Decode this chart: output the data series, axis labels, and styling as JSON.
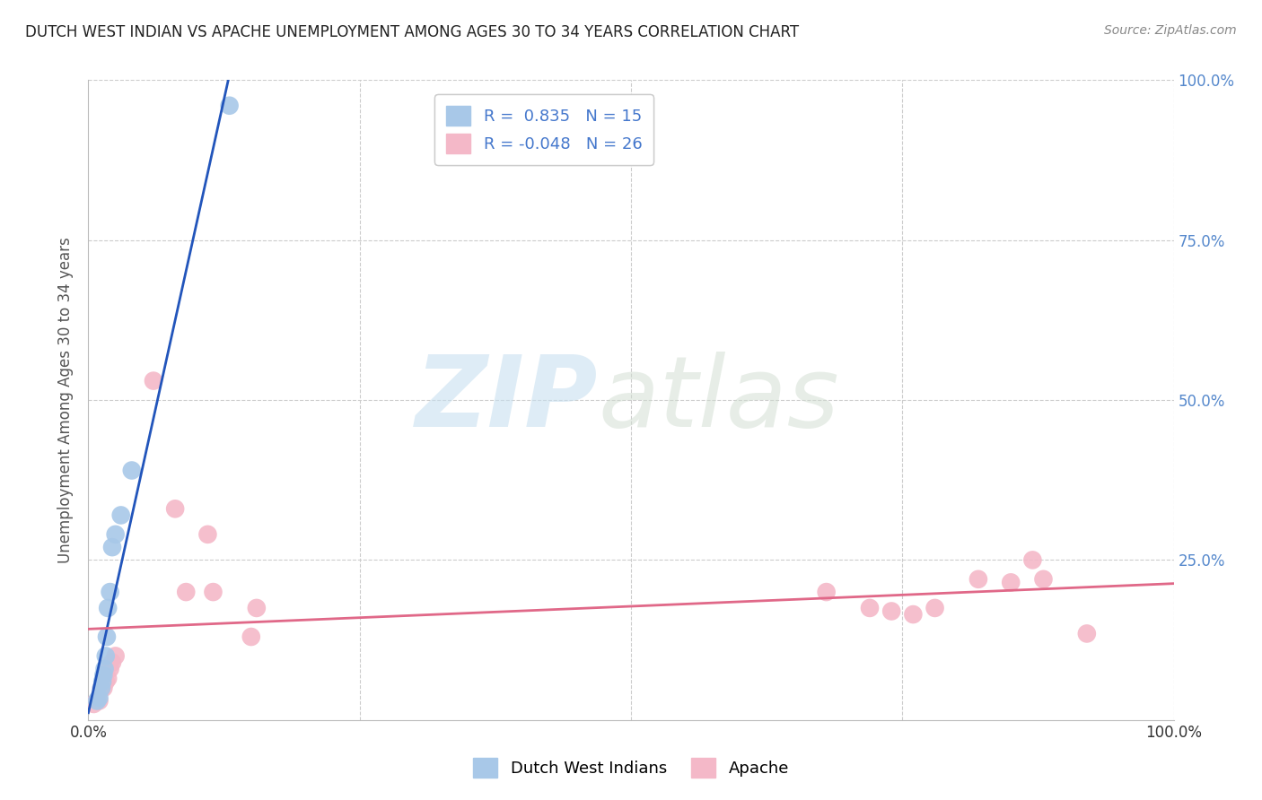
{
  "title": "DUTCH WEST INDIAN VS APACHE UNEMPLOYMENT AMONG AGES 30 TO 34 YEARS CORRELATION CHART",
  "source": "Source: ZipAtlas.com",
  "ylabel": "Unemployment Among Ages 30 to 34 years",
  "xlim": [
    0.0,
    1.0
  ],
  "ylim": [
    0.0,
    1.0
  ],
  "r_blue": 0.835,
  "n_blue": 15,
  "r_pink": -0.048,
  "n_pink": 26,
  "blue_color": "#a8c8e8",
  "pink_color": "#f4b8c8",
  "blue_line_color": "#2255bb",
  "pink_line_color": "#e06888",
  "blue_scatter_x": [
    0.008,
    0.01,
    0.012,
    0.013,
    0.014,
    0.015,
    0.016,
    0.017,
    0.018,
    0.02,
    0.022,
    0.025,
    0.03,
    0.04,
    0.13
  ],
  "blue_scatter_y": [
    0.03,
    0.035,
    0.05,
    0.06,
    0.07,
    0.08,
    0.1,
    0.13,
    0.175,
    0.2,
    0.27,
    0.29,
    0.32,
    0.39,
    0.96
  ],
  "pink_scatter_x": [
    0.005,
    0.01,
    0.012,
    0.014,
    0.016,
    0.018,
    0.02,
    0.022,
    0.025,
    0.06,
    0.08,
    0.09,
    0.11,
    0.115,
    0.15,
    0.155,
    0.68,
    0.72,
    0.74,
    0.76,
    0.78,
    0.82,
    0.85,
    0.87,
    0.88,
    0.92
  ],
  "pink_scatter_y": [
    0.025,
    0.03,
    0.05,
    0.05,
    0.06,
    0.065,
    0.08,
    0.09,
    0.1,
    0.53,
    0.33,
    0.2,
    0.29,
    0.2,
    0.13,
    0.175,
    0.2,
    0.175,
    0.17,
    0.165,
    0.175,
    0.22,
    0.215,
    0.25,
    0.22,
    0.135
  ],
  "background_color": "#ffffff",
  "grid_color": "#cccccc"
}
